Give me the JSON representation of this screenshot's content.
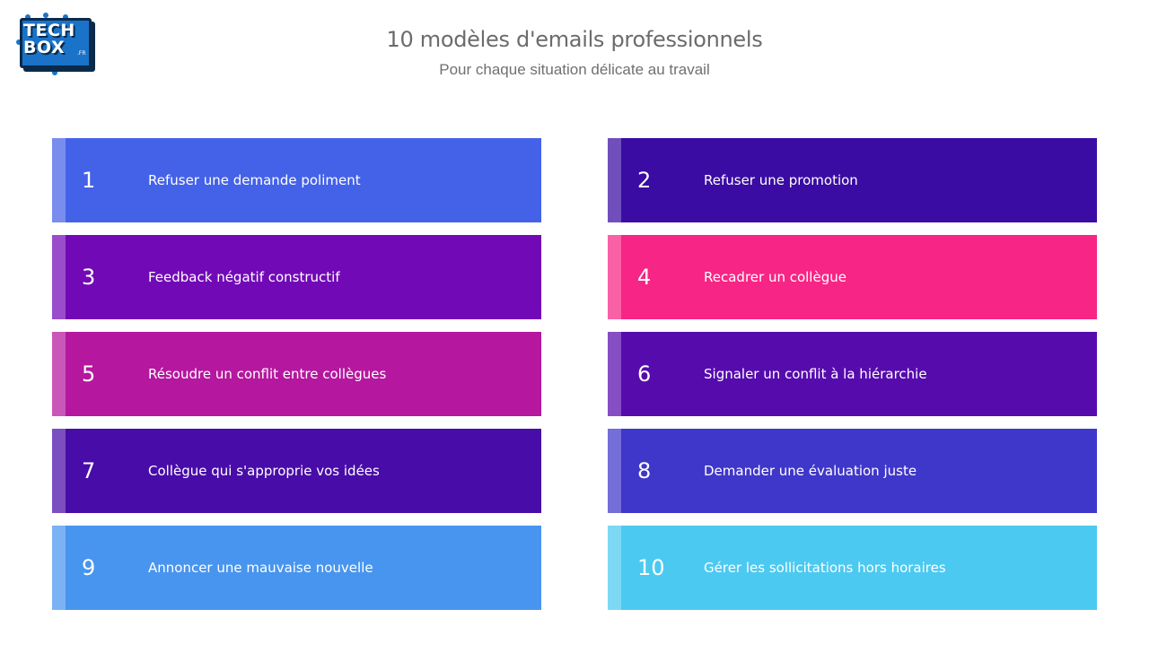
{
  "logo": {
    "line1": "TECH",
    "line2": "BOX",
    "suffix": ".FR"
  },
  "header": {
    "title": "10 modèles d'emails professionnels",
    "subtitle": "Pour chaque situation délicate au travail"
  },
  "cards": [
    {
      "number": "1",
      "label": "Refuser une demande poliment",
      "color": "#4462e8"
    },
    {
      "number": "2",
      "label": "Refuser une promotion",
      "color": "#3a0ca3"
    },
    {
      "number": "3",
      "label": "Feedback négatif constructif",
      "color": "#7209b7"
    },
    {
      "number": "4",
      "label": "Recadrer un collègue",
      "color": "#f72585"
    },
    {
      "number": "5",
      "label": "Résoudre un conflit entre collègues",
      "color": "#b5179e"
    },
    {
      "number": "6",
      "label": "Signaler un conflit à la hiérarchie",
      "color": "#560bad"
    },
    {
      "number": "7",
      "label": "Collègue qui s'approprie vos idées",
      "color": "#480ca8"
    },
    {
      "number": "8",
      "label": "Demander une évaluation juste",
      "color": "#3f37c9"
    },
    {
      "number": "9",
      "label": "Annoncer une mauvaise nouvelle",
      "color": "#4895ef"
    },
    {
      "number": "10",
      "label": "Gérer les sollicitations hors horaires",
      "color": "#4cc9f0"
    }
  ]
}
